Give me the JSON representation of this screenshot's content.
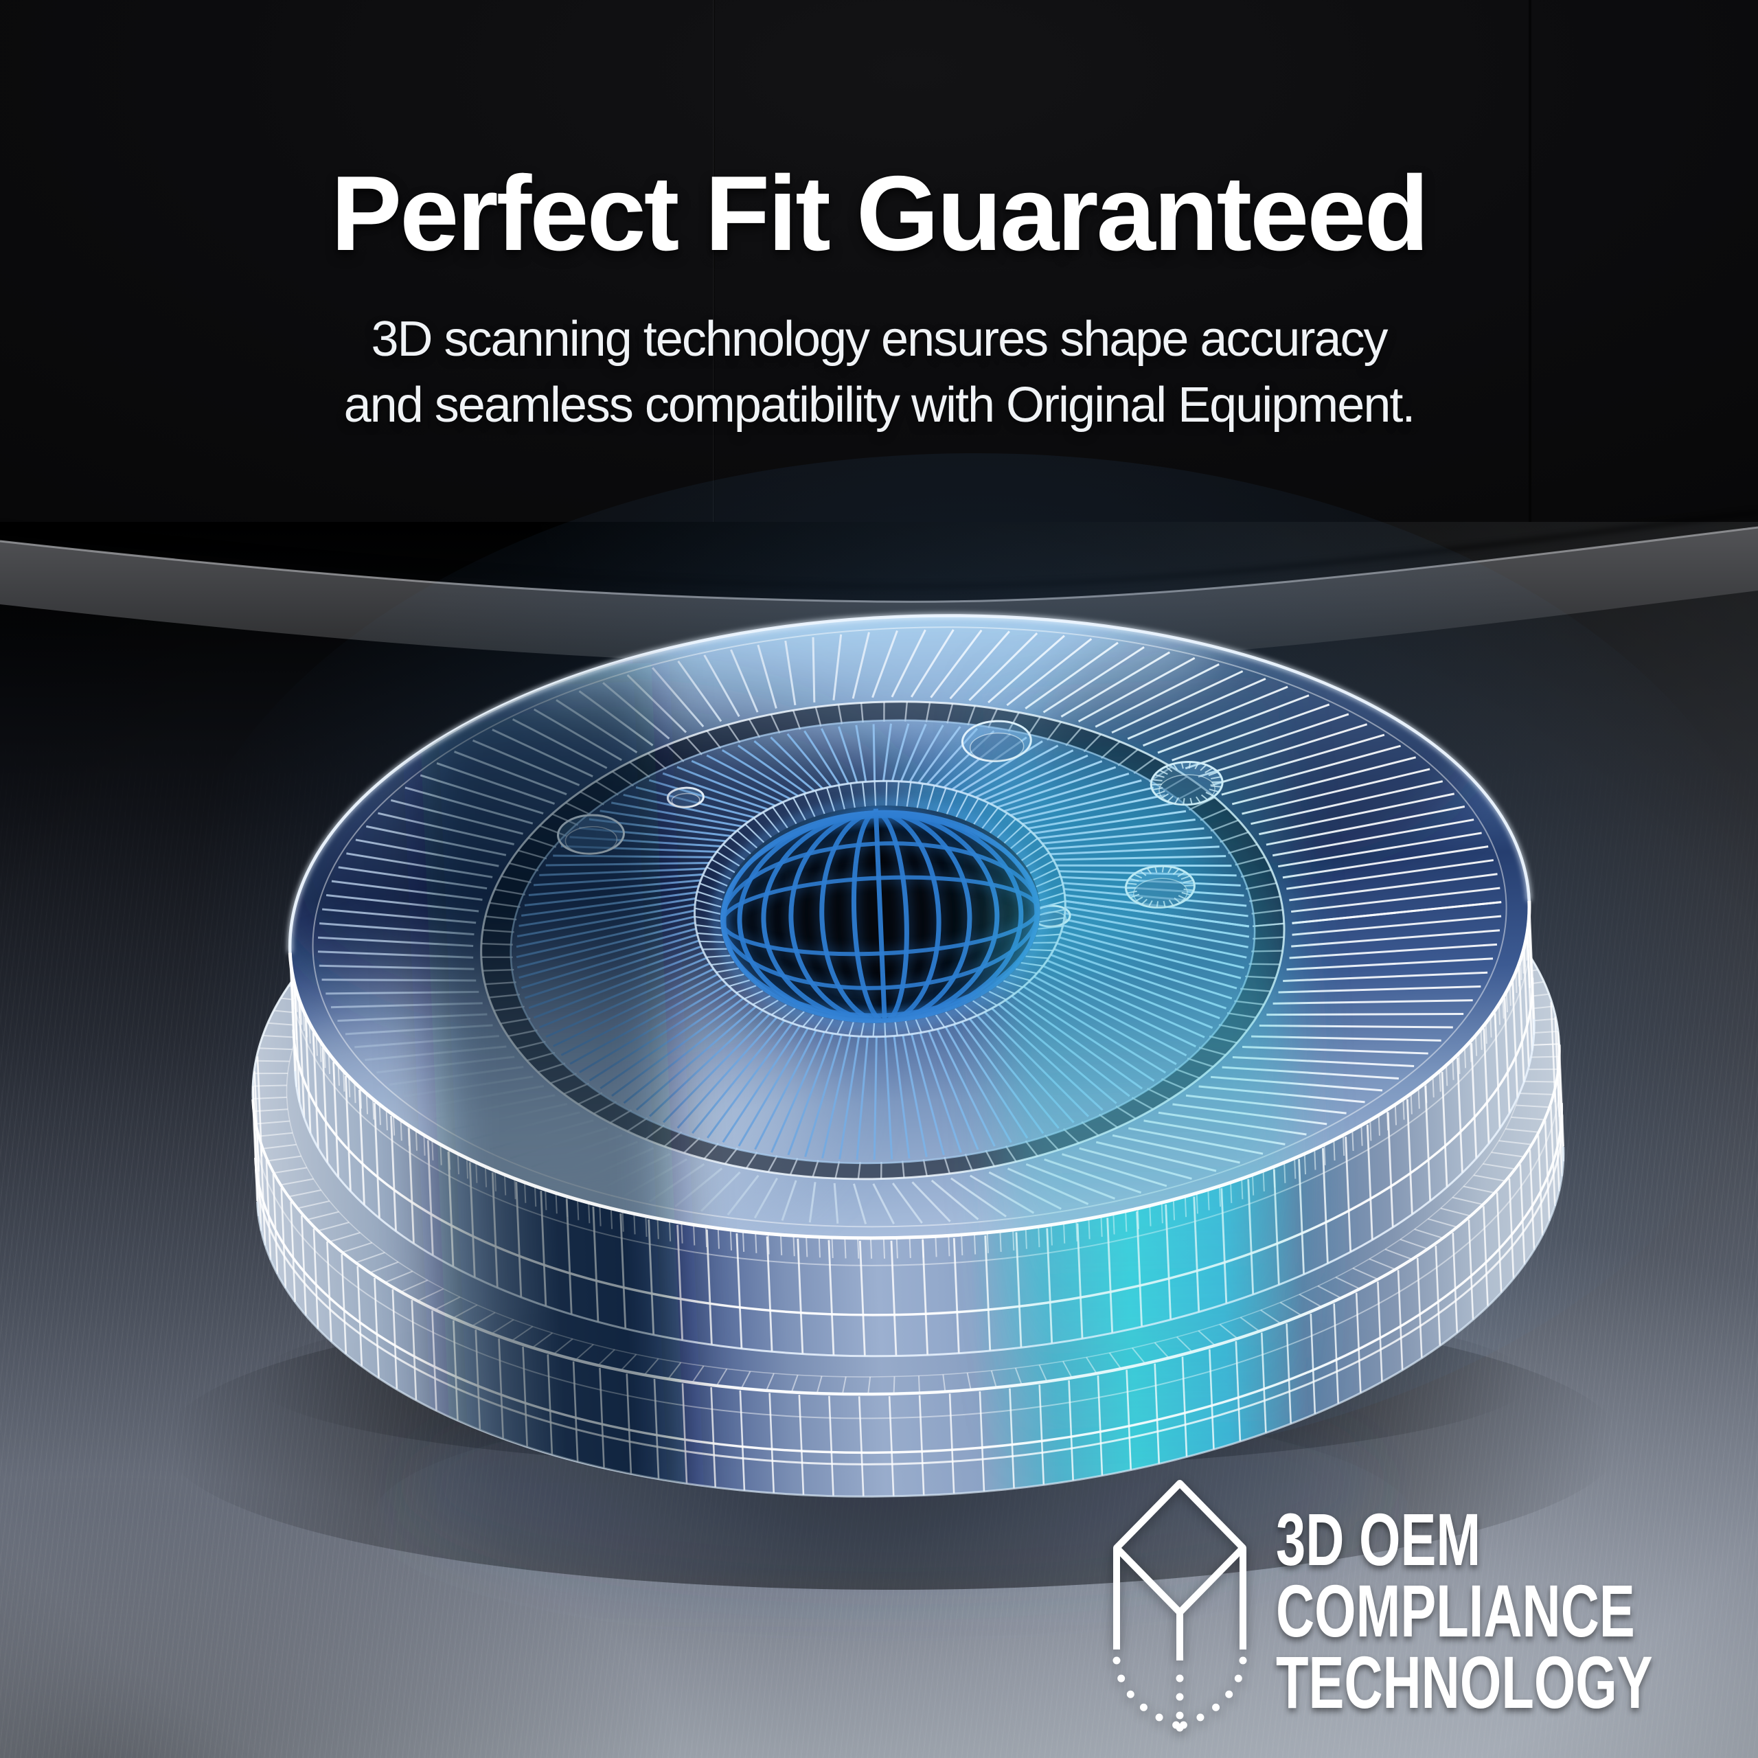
{
  "meta": {
    "type": "product-marketing-graphic",
    "description": "3D wireframe render of an automotive brake drum floating on a brushed metal studio floor under a dark wall"
  },
  "header": {
    "title": "Perfect Fit Guaranteed",
    "subtitle_line1": "3D scanning technology ensures shape accuracy",
    "subtitle_line2": "and seamless compatibility with Original Equipment."
  },
  "badge": {
    "icon": "wireframe-cube-icon",
    "line1": "3D OEM",
    "line2": "COMPLIANCE",
    "line3": "TECHNOLOGY"
  },
  "illustration": {
    "name": "brake-drum-3d-wireframe",
    "subject": "brake drum with radial cooling fins, center hub bore, five lug holes and two balance holes on a two-tier rim"
  },
  "colors": {
    "text_white": "#ffffff",
    "wall_bg": "#0b0b0d",
    "stage_edge_gray": "#4c4d50",
    "floor_light_gray": "#99a0a9",
    "wire_line": "#e9f2fb",
    "face_navy": "#263e6f",
    "light_blue": "#9ecbee",
    "periwinkle": "#9cb0d0",
    "teal_accent": "#3ecfdc",
    "navy_shadow": "#0a1430",
    "bore_grid_blue": "#2e7cd0",
    "glow_blue": "#4a8fd8",
    "pale_silver": "#cfdcec"
  }
}
